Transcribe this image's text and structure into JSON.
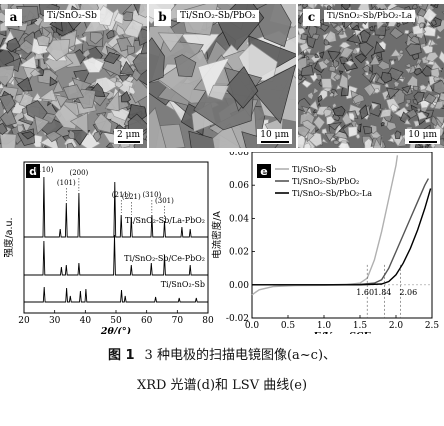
{
  "panels": {
    "a": {
      "letter": "a",
      "label": "Ti/SnO₂-Sb",
      "scale": "2 μm"
    },
    "b": {
      "letter": "b",
      "label": "Ti/SnO₂-Sb/PbO₂",
      "scale": "10 μm"
    },
    "c": {
      "letter": "c",
      "label": "Ti/SnO₂-Sb/PbO₂-La",
      "scale": "10 μm"
    }
  },
  "chart_data": [
    {
      "type": "line",
      "panel": "d",
      "ylabel": "强度/a.u.",
      "xlabel": "2θ/(°)",
      "xlim": [
        20,
        80
      ],
      "xticks": [
        20,
        30,
        40,
        50,
        60,
        70,
        80
      ],
      "peak_labels": [
        {
          "text": "(110)",
          "x": 26.5
        },
        {
          "text": "(101)",
          "x": 33.8
        },
        {
          "text": "(200)",
          "x": 37.9
        },
        {
          "text": "(211)",
          "x": 51.7
        },
        {
          "text": "(221)",
          "x": 55.0
        },
        {
          "text": "(310)",
          "x": 61.7
        },
        {
          "text": "(301)",
          "x": 65.8
        }
      ],
      "series": [
        {
          "name": "Ti/SnO₂-Sb/La-PbO₂",
          "peaks": [
            [
              26.5,
              60
            ],
            [
              31.8,
              8
            ],
            [
              33.8,
              34
            ],
            [
              37.9,
              44
            ],
            [
              49.6,
              55
            ],
            [
              51.7,
              22
            ],
            [
              55.0,
              20
            ],
            [
              61.7,
              22
            ],
            [
              65.8,
              16
            ],
            [
              71.5,
              10
            ],
            [
              74.2,
              8
            ]
          ]
        },
        {
          "name": "Ti/SnO₂-Sb/Ce-PbO₂",
          "peaks": [
            [
              26.5,
              34
            ],
            [
              32.2,
              8
            ],
            [
              33.8,
              10
            ],
            [
              37.9,
              12
            ],
            [
              49.5,
              40
            ],
            [
              55.0,
              10
            ],
            [
              61.5,
              12
            ],
            [
              65.8,
              20
            ],
            [
              74.2,
              10
            ]
          ]
        },
        {
          "name": "Ti/SnO₂-Sb",
          "peaks": [
            [
              26.6,
              15
            ],
            [
              33.9,
              14
            ],
            [
              35.1,
              6
            ],
            [
              38.4,
              11
            ],
            [
              40.2,
              13
            ],
            [
              51.8,
              12
            ],
            [
              53.0,
              6
            ],
            [
              62.9,
              5
            ],
            [
              70.6,
              4
            ],
            [
              76.2,
              4
            ]
          ]
        }
      ]
    },
    {
      "type": "line",
      "panel": "e",
      "ylabel": "电流密度/A",
      "xlabel": "E/V vs SCE",
      "xlim": [
        0.0,
        2.5
      ],
      "ylim": [
        -0.02,
        0.08
      ],
      "xticks": [
        "0.0",
        "0.5",
        "1.0",
        "1.5",
        "2.0",
        "2.5"
      ],
      "yticks": [
        "-0.02",
        "0.00",
        "0.02",
        "0.04",
        "0.06",
        "0.08"
      ],
      "onset_labels": [
        "1.60",
        "1.84",
        "2.06"
      ],
      "onset_values": [
        1.6,
        1.84,
        2.06
      ],
      "series": [
        {
          "name": "Ti/SnO₂-Sb",
          "color": "#b0b0b0",
          "x": [
            0.0,
            0.1,
            0.3,
            0.6,
            1.0,
            1.3,
            1.5,
            1.6,
            1.7,
            1.8,
            1.9,
            2.0,
            2.02
          ],
          "y": [
            -0.006,
            -0.003,
            -0.001,
            -0.0005,
            -0.0003,
            0.0,
            0.001,
            0.004,
            0.015,
            0.032,
            0.052,
            0.072,
            0.078
          ]
        },
        {
          "name": "Ti/SnO₂-Sb/PbO₂",
          "color": "#555555",
          "x": [
            0.0,
            0.5,
            1.0,
            1.5,
            1.7,
            1.8,
            1.9,
            2.0,
            2.1,
            2.2,
            2.3,
            2.4,
            2.45
          ],
          "y": [
            0.0,
            0.0,
            0.0,
            0.0003,
            0.001,
            0.003,
            0.01,
            0.02,
            0.03,
            0.04,
            0.05,
            0.06,
            0.064
          ]
        },
        {
          "name": "Ti/SnO₂-Sb/PbO₂-La",
          "color": "#000000",
          "x": [
            0.0,
            0.5,
            1.0,
            1.5,
            1.8,
            1.9,
            2.0,
            2.1,
            2.2,
            2.3,
            2.4,
            2.48
          ],
          "y": [
            0.0,
            0.0,
            0.0,
            0.0,
            0.0005,
            0.002,
            0.006,
            0.013,
            0.022,
            0.033,
            0.046,
            0.058
          ]
        }
      ]
    }
  ],
  "caption": {
    "fig_no": "图 1",
    "line1": "3 种电极的扫描电镜图像(a~c)、",
    "line2": "XRD 光谱(d)和 LSV 曲线(e)"
  }
}
